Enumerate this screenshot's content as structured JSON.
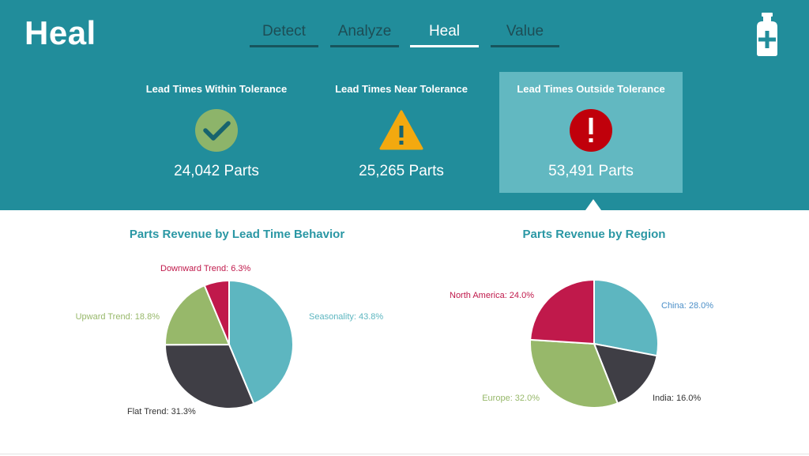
{
  "app": {
    "title": "Heal"
  },
  "tabs": [
    {
      "label": "Detect",
      "active": false
    },
    {
      "label": "Analyze",
      "active": false
    },
    {
      "label": "Heal",
      "active": true
    },
    {
      "label": "Value",
      "active": false
    }
  ],
  "header_icon": "medicine-bottle-icon",
  "status_cards": {
    "within": {
      "title": "Lead Times Within Tolerance",
      "count": "24,042 Parts",
      "icon": "checkmark-icon",
      "color": "#8db46a"
    },
    "near": {
      "title": "Lead Times Near Tolerance",
      "count": "25,265 Parts",
      "icon": "warning-icon",
      "color": "#f3a90f"
    },
    "outside": {
      "title": "Lead Times Outside Tolerance",
      "count": "53,491 Parts",
      "icon": "error-icon",
      "color": "#c0000b",
      "selected": true
    }
  },
  "colors": {
    "header_bg": "#218d9b",
    "selected_card_bg": "#62b8c1",
    "chart_title": "#2a97a4"
  },
  "chart_data": [
    {
      "type": "pie",
      "title": "Parts Revenue by Lead Time Behavior",
      "slices": [
        {
          "label": "Seasonality: 43.8%",
          "value": 43.8,
          "color": "#5db6c0",
          "label_color": "#5db6c0"
        },
        {
          "label": "Flat Trend: 31.3%",
          "value": 31.3,
          "color": "#3f3e45",
          "label_color": "#333333"
        },
        {
          "label": "Upward Trend: 18.8%",
          "value": 18.8,
          "color": "#97b86a",
          "label_color": "#97b86a"
        },
        {
          "label": "Downward Trend: 6.3%",
          "value": 6.3,
          "color": "#c0194b",
          "label_color": "#c0194b"
        }
      ]
    },
    {
      "type": "pie",
      "title": "Parts Revenue by Region",
      "slices": [
        {
          "label": "China: 28.0%",
          "value": 28.0,
          "color": "#5db6c0",
          "label_color": "#4c8fc8"
        },
        {
          "label": "India: 16.0%",
          "value": 16.0,
          "color": "#3f3e45",
          "label_color": "#333333"
        },
        {
          "label": "Europe: 32.0%",
          "value": 32.0,
          "color": "#97b86a",
          "label_color": "#97b86a"
        },
        {
          "label": "North America: 24.0%",
          "value": 24.0,
          "color": "#c0194b",
          "label_color": "#c0194b"
        }
      ]
    }
  ]
}
